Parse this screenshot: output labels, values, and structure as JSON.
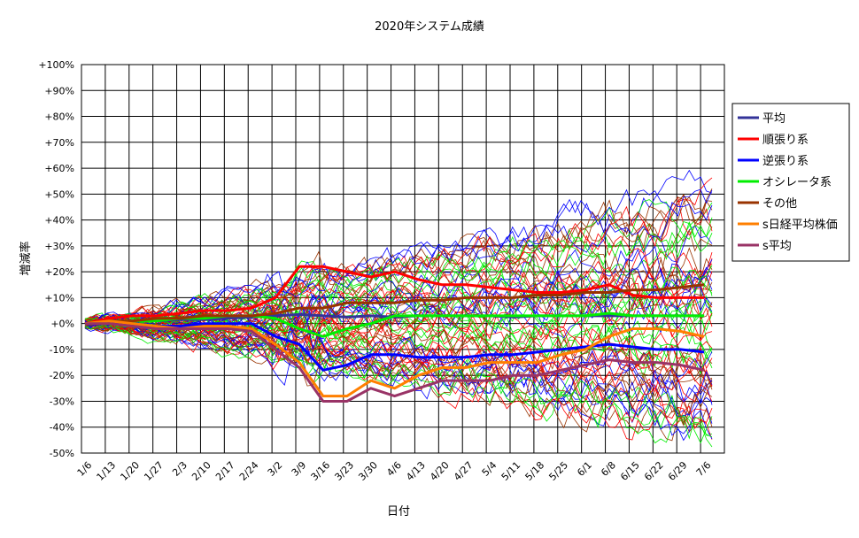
{
  "chart_data": {
    "type": "line",
    "title": "2020年システム成績",
    "xlabel": "日付",
    "ylabel": "増減率",
    "ylim": [
      -50,
      100
    ],
    "y_ticks": [
      "-50%",
      "-40%",
      "-30%",
      "-20%",
      "-10%",
      "+0%",
      "+10%",
      "+20%",
      "+30%",
      "+40%",
      "+50%",
      "+60%",
      "+70%",
      "+80%",
      "+90%",
      "+100%"
    ],
    "x_ticks": [
      "1/6",
      "1/13",
      "1/20",
      "1/27",
      "2/3",
      "2/10",
      "2/17",
      "2/24",
      "3/2",
      "3/9",
      "3/16",
      "3/23",
      "3/30",
      "4/6",
      "4/13",
      "4/20",
      "4/27",
      "5/4",
      "5/11",
      "5/18",
      "5/25",
      "6/1",
      "6/8",
      "6/15",
      "6/22",
      "6/29",
      "7/6"
    ],
    "grid": true,
    "legend_position": "right",
    "colors": {
      "avg": "#333399",
      "trend": "#ff0000",
      "contrarian": "#0000ff",
      "oscillator": "#00ee00",
      "other": "#993300",
      "nikkei": "#ff7f00",
      "s_avg": "#993366"
    },
    "series": [
      {
        "name": "平均",
        "color": "#333399",
        "values": [
          0,
          0.5,
          1,
          1,
          1.5,
          1.5,
          2,
          2.5,
          3,
          3.5,
          3,
          2.5,
          3,
          2.5,
          3,
          3,
          3,
          3,
          2.5,
          3,
          3,
          3,
          3,
          3,
          3,
          3,
          3
        ]
      },
      {
        "name": "順張り系",
        "color": "#ff0000",
        "values": [
          0,
          2,
          3,
          3,
          4,
          5,
          5,
          6,
          10,
          22,
          22,
          20,
          18,
          20,
          17,
          15,
          15,
          14,
          13,
          12,
          12,
          13,
          15,
          11,
          10,
          10,
          10
        ]
      },
      {
        "name": "逆張り系",
        "color": "#0000ff",
        "values": [
          0,
          0,
          0,
          -1,
          -1,
          0,
          0,
          0,
          -5,
          -8,
          -18,
          -16,
          -12,
          -12,
          -13,
          -13,
          -13,
          -12,
          -12,
          -11,
          -10,
          -9,
          -8,
          -9,
          -10,
          -10,
          -11
        ]
      },
      {
        "name": "オシレータ系",
        "color": "#00ee00",
        "values": [
          0,
          1,
          1,
          1,
          2,
          2,
          3,
          3,
          2,
          -2,
          -5,
          -2,
          0,
          3,
          3,
          3,
          3,
          3,
          3,
          3,
          3,
          3,
          4,
          3,
          3,
          3,
          3
        ]
      },
      {
        "name": "その他",
        "color": "#993300",
        "values": [
          0,
          1,
          1,
          2,
          2,
          3,
          3,
          3,
          4,
          6,
          6,
          8,
          8,
          8,
          9,
          9,
          10,
          10,
          10,
          11,
          11,
          12,
          12,
          13,
          13,
          14,
          15
        ]
      },
      {
        "name": "s日経平均株価",
        "color": "#ff7f00",
        "values": [
          0,
          1,
          0,
          -1,
          -2,
          -1,
          -1,
          -2,
          -8,
          -15,
          -28,
          -28,
          -22,
          -25,
          -20,
          -17,
          -17,
          -15,
          -15,
          -15,
          -12,
          -10,
          -5,
          -2,
          -2,
          -3,
          -5
        ]
      },
      {
        "name": "s平均",
        "color": "#993366",
        "values": [
          0,
          0,
          -1,
          -2,
          -2,
          -2,
          -2,
          -3,
          -10,
          -17,
          -30,
          -30,
          -25,
          -28,
          -25,
          -22,
          -22,
          -22,
          -20,
          -20,
          -18,
          -16,
          -14,
          -15,
          -15,
          -16,
          -18
        ]
      }
    ]
  }
}
